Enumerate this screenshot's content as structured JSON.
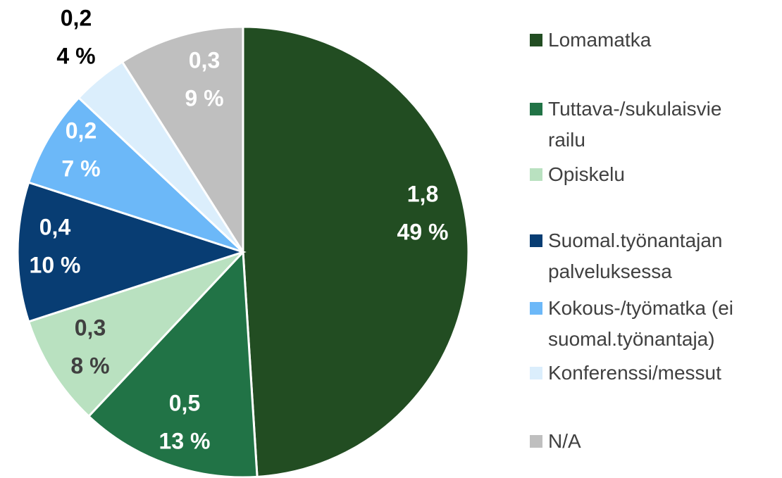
{
  "chart_data": {
    "type": "pie",
    "categories": [
      "Lomamatka",
      "Tuttava-/sukulaisvierailu",
      "Opiskelu",
      "Suomal.työnantajan palveluksessa",
      "Kokous-/työmatka (ei suomal.työnantaja)",
      "Konferenssi/messut",
      "N/A"
    ],
    "values": [
      1.8,
      0.5,
      0.3,
      0.4,
      0.2,
      0.2,
      0.3
    ],
    "value_labels": [
      "1,8",
      "0,5",
      "0,3",
      "0,4",
      "0,2",
      "0,2",
      "0,3"
    ],
    "percentages": [
      49,
      13,
      8,
      10,
      7,
      4,
      9
    ],
    "percentage_labels": [
      "49 %",
      "13 %",
      "8 %",
      "10 %",
      "7 %",
      "4 %",
      "9 %"
    ],
    "colors": [
      "#224d22",
      "#217346",
      "#b9e1c0",
      "#083d73",
      "#6cb8f8",
      "#dbeefc",
      "#bfbfbf"
    ],
    "legend": "right"
  }
}
